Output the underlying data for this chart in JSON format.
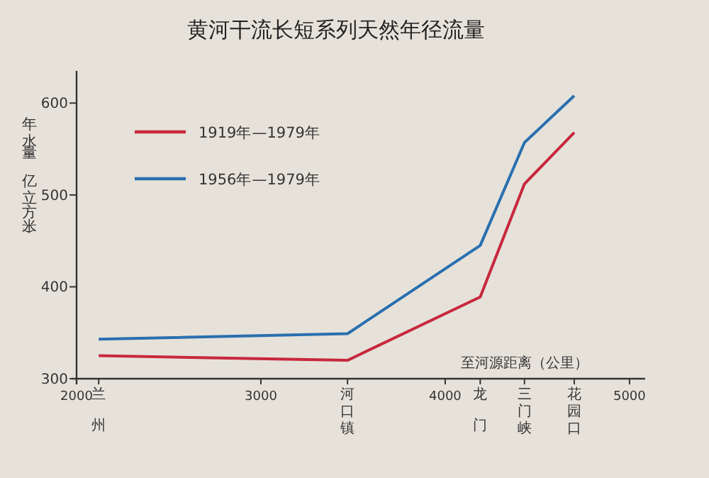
{
  "chart_data": {
    "type": "line",
    "title": "黄河干流长短系列天然年径流量",
    "xlabel": "至河源距离（公里）",
    "ylabel": "年水量（亿立方米）",
    "x": [
      2120,
      3470,
      4190,
      4430,
      4700
    ],
    "series": [
      {
        "name": "1919年—1979年",
        "color": "#c8283c",
        "values": [
          325,
          320,
          389,
          512,
          568
        ]
      },
      {
        "name": "1956年—1979年",
        "color": "#2a6fb0",
        "values": [
          343,
          349,
          445,
          557,
          608
        ]
      }
    ],
    "xlim": [
      2000,
      5085
    ],
    "ylim": [
      300,
      635
    ],
    "xticks": [
      2000,
      {
        "value": 2120,
        "label": "兰州"
      },
      3000,
      {
        "value": 3470,
        "label": "河口镇"
      },
      4000,
      {
        "value": 4190,
        "label": "龙门"
      },
      {
        "value": 4430,
        "label": "三门峡"
      },
      {
        "value": 4700,
        "label": "花园口"
      },
      5000
    ],
    "yticks": [
      300,
      400,
      500,
      600
    ],
    "legend": "top left",
    "grid": false,
    "marker": "none",
    "line_style": "solid"
  }
}
